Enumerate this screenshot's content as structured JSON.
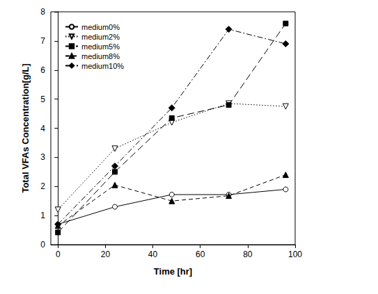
{
  "chart_data": {
    "type": "line",
    "x_label": "Time [hr]",
    "y_label": "Total VFAs Concentration[g/L]",
    "x": [
      0,
      24,
      48,
      72,
      96
    ],
    "xlim": [
      -3,
      100
    ],
    "xticks": [
      0,
      20,
      40,
      60,
      80,
      100
    ],
    "ylim": [
      0,
      8
    ],
    "yticks": [
      0,
      1,
      2,
      3,
      4,
      5,
      6,
      7,
      8
    ],
    "grid": false,
    "legend": "top-left",
    "series": [
      {
        "name": "medium0%",
        "color": "#000000",
        "marker": "circle_open",
        "line_style": "solid",
        "values": [
          0.7,
          1.3,
          1.72,
          1.72,
          1.9
        ]
      },
      {
        "name": "medium2%",
        "color": "#000000",
        "marker": "triangle_down_open",
        "line_style": "dotted",
        "values": [
          1.2,
          3.3,
          4.2,
          4.85,
          4.75
        ]
      },
      {
        "name": "medium5%",
        "color": "#000000",
        "marker": "square",
        "line_style": "long_dash",
        "values": [
          0.42,
          2.5,
          4.35,
          4.8,
          7.6
        ]
      },
      {
        "name": "medium8%",
        "color": "#000000",
        "marker": "triangle",
        "line_style": "dashed",
        "values": [
          0.65,
          2.05,
          1.5,
          1.68,
          2.4
        ]
      },
      {
        "name": "medium10%",
        "color": "#000000",
        "marker": "diamond",
        "line_style": "dash_dot",
        "values": [
          0.7,
          2.7,
          4.7,
          7.4,
          6.9
        ]
      }
    ]
  }
}
